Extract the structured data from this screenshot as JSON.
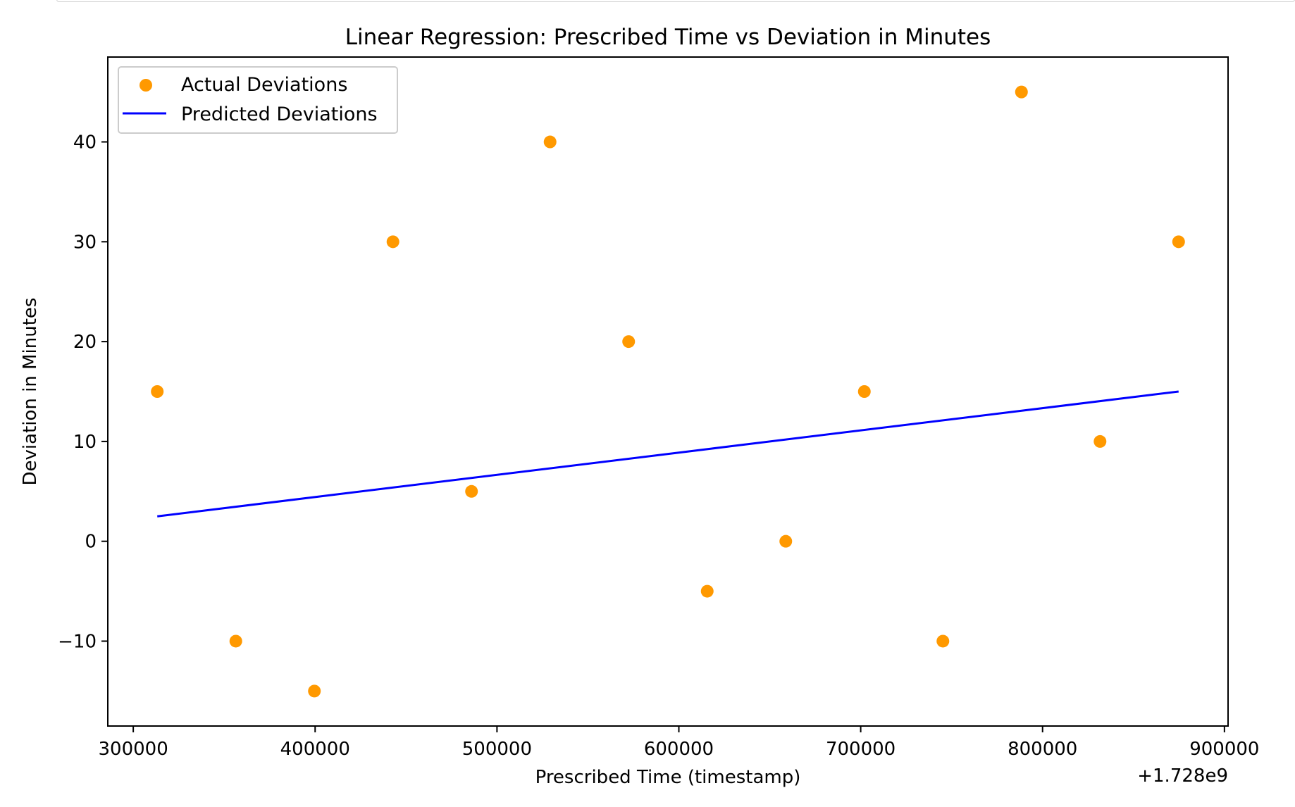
{
  "chart_data": {
    "type": "scatter",
    "title": "Linear Regression: Prescribed Time vs Deviation in Minutes",
    "xlabel": "Prescribed Time (timestamp)",
    "ylabel": "Deviation in Minutes",
    "x_offset_label": "+1.728e9",
    "xlim": [
      286000,
      902000
    ],
    "ylim": [
      -18.5,
      48.5
    ],
    "x_ticks": [
      300000,
      400000,
      500000,
      600000,
      700000,
      800000,
      900000
    ],
    "x_tick_labels": [
      "300000",
      "400000",
      "500000",
      "600000",
      "700000",
      "800000",
      "900000"
    ],
    "y_ticks": [
      -10,
      0,
      10,
      20,
      30,
      40
    ],
    "y_tick_labels": [
      "−10",
      "0",
      "10",
      "20",
      "30",
      "40"
    ],
    "grid": false,
    "legend_position": "top-left",
    "series": [
      {
        "name": "Actual Deviations",
        "kind": "scatter",
        "color": "#ff9900",
        "x": [
          313200,
          356400,
          399600,
          442800,
          486000,
          529200,
          572400,
          615600,
          658800,
          702000,
          745200,
          788400,
          831600,
          874800
        ],
        "y": [
          15,
          -10,
          -15,
          30,
          5,
          40,
          20,
          -5,
          0,
          15,
          -10,
          45,
          10,
          30
        ]
      },
      {
        "name": "Predicted Deviations",
        "kind": "line",
        "color": "#0000ff",
        "x": [
          313200,
          874800
        ],
        "y": [
          2.5,
          15.0
        ]
      }
    ]
  }
}
